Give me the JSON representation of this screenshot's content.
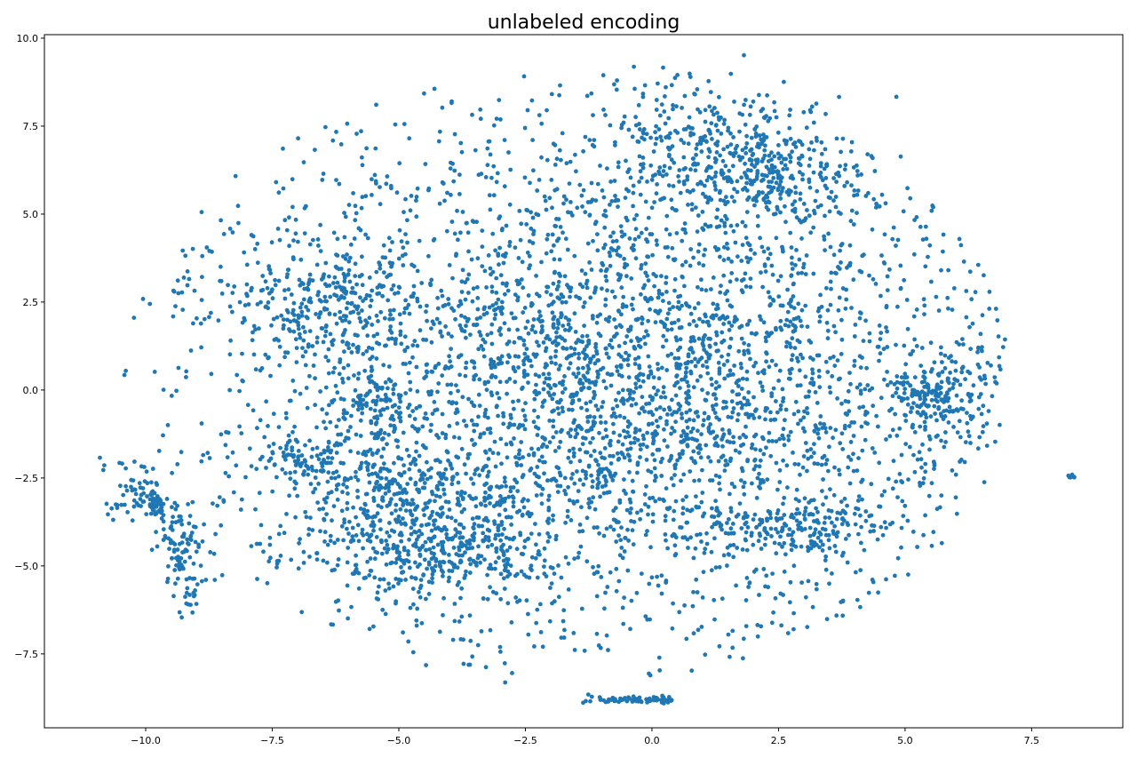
{
  "chart_data": {
    "type": "scatter",
    "title": "unlabeled encoding",
    "xlabel": "",
    "ylabel": "",
    "xlim": [
      -12.0,
      9.3
    ],
    "ylim": [
      -9.6,
      10.1
    ],
    "xticks": [
      -10.0,
      -7.5,
      -5.0,
      -2.5,
      0.0,
      2.5,
      5.0,
      7.5
    ],
    "yticks": [
      -7.5,
      -5.0,
      -2.5,
      0.0,
      2.5,
      5.0,
      7.5,
      10.0
    ],
    "xtick_labels": [
      "−10.0",
      "−7.5",
      "−5.0",
      "−2.5",
      "0.0",
      "2.5",
      "5.0",
      "7.5"
    ],
    "ytick_labels": [
      "−7.5",
      "−5.0",
      "−2.5",
      "0.0",
      "2.5",
      "5.0",
      "7.5",
      "10.0"
    ],
    "grid": false,
    "series": [
      {
        "color": "#1f77b4",
        "clusters": [
          {
            "cx": -0.5,
            "cy": 0.3,
            "sx": 3.6,
            "sy": 3.3,
            "n": 3200
          },
          {
            "cx": -4.5,
            "cy": -4.3,
            "sx": 1.3,
            "sy": 0.9,
            "n": 500
          },
          {
            "cx": -6.5,
            "cy": 2.6,
            "sx": 1.0,
            "sy": 0.9,
            "n": 260
          },
          {
            "cx": 1.3,
            "cy": 6.8,
            "sx": 1.1,
            "sy": 1.0,
            "n": 320
          },
          {
            "cx": 2.6,
            "cy": 6.0,
            "sx": 0.6,
            "sy": 0.6,
            "n": 160
          },
          {
            "cx": 5.6,
            "cy": -0.2,
            "sx": 0.55,
            "sy": 0.5,
            "n": 180
          },
          {
            "cx": 2.8,
            "cy": -3.9,
            "sx": 1.0,
            "sy": 0.35,
            "n": 170
          },
          {
            "cx": -5.5,
            "cy": -0.6,
            "sx": 0.5,
            "sy": 0.5,
            "n": 90
          },
          {
            "cx": -5.2,
            "cy": -2.6,
            "sx": 0.8,
            "sy": 0.5,
            "n": 140
          },
          {
            "cx": -7.0,
            "cy": -1.9,
            "sx": 0.5,
            "sy": 0.4,
            "n": 70
          }
        ],
        "arcs": [
          {
            "x0": -10.6,
            "y0": -2.2,
            "x1": -9.3,
            "y1": -6.1,
            "width": 0.25,
            "n": 160
          },
          {
            "x0": -10.9,
            "y0": -3.4,
            "x1": -10.0,
            "y1": -3.1,
            "width": 0.15,
            "n": 40
          }
        ],
        "strips": [
          {
            "x0": -1.5,
            "x1": 0.4,
            "y": -8.8,
            "height": 0.05,
            "n": 70
          },
          {
            "x0": 8.2,
            "x1": 8.35,
            "y": -2.45,
            "height": 0.05,
            "n": 8
          }
        ],
        "sparse_bounds": {
          "xmin": -10.5,
          "xmax": 7.0,
          "ymin": -8.5,
          "ymax": 9.1,
          "n": 900
        }
      }
    ]
  }
}
